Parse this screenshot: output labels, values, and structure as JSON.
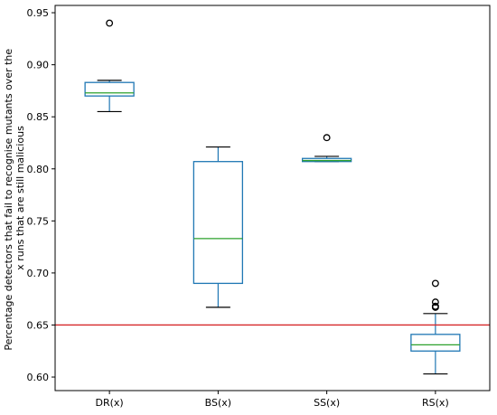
{
  "chart_data": {
    "type": "box",
    "title": "",
    "xlabel": "",
    "ylabel_lines": [
      "Percentage detectors that fail to recognise mutants over the",
      "x runs that are still malicious"
    ],
    "categories": [
      "DR(x)",
      "BS(x)",
      "SS(x)",
      "RS(x)"
    ],
    "ylim": [
      0.587,
      0.957
    ],
    "yticks": [
      "0.60",
      "0.65",
      "0.70",
      "0.75",
      "0.80",
      "0.85",
      "0.90",
      "0.95"
    ],
    "boxes": [
      {
        "label": "DR(x)",
        "whisker_low": 0.855,
        "q1": 0.87,
        "median": 0.873,
        "q3": 0.883,
        "whisker_high": 0.885,
        "outliers": [
          0.94
        ]
      },
      {
        "label": "BS(x)",
        "whisker_low": 0.667,
        "q1": 0.69,
        "median": 0.733,
        "q3": 0.807,
        "whisker_high": 0.821,
        "outliers": []
      },
      {
        "label": "SS(x)",
        "whisker_low": 0.807,
        "q1": 0.807,
        "median": 0.808,
        "q3": 0.81,
        "whisker_high": 0.812,
        "outliers": [
          0.83
        ]
      },
      {
        "label": "RS(x)",
        "whisker_low": 0.603,
        "q1": 0.625,
        "median": 0.631,
        "q3": 0.641,
        "whisker_high": 0.661,
        "outliers": [
          0.667,
          0.668,
          0.672,
          0.69
        ]
      }
    ],
    "reference_line": {
      "y": 0.65
    },
    "grid": false,
    "colors": {
      "box": "#1f77b4",
      "median": "#2ca02c",
      "whisker_cap": "#000000",
      "reference": "#d62728",
      "axis": "#000000"
    }
  }
}
